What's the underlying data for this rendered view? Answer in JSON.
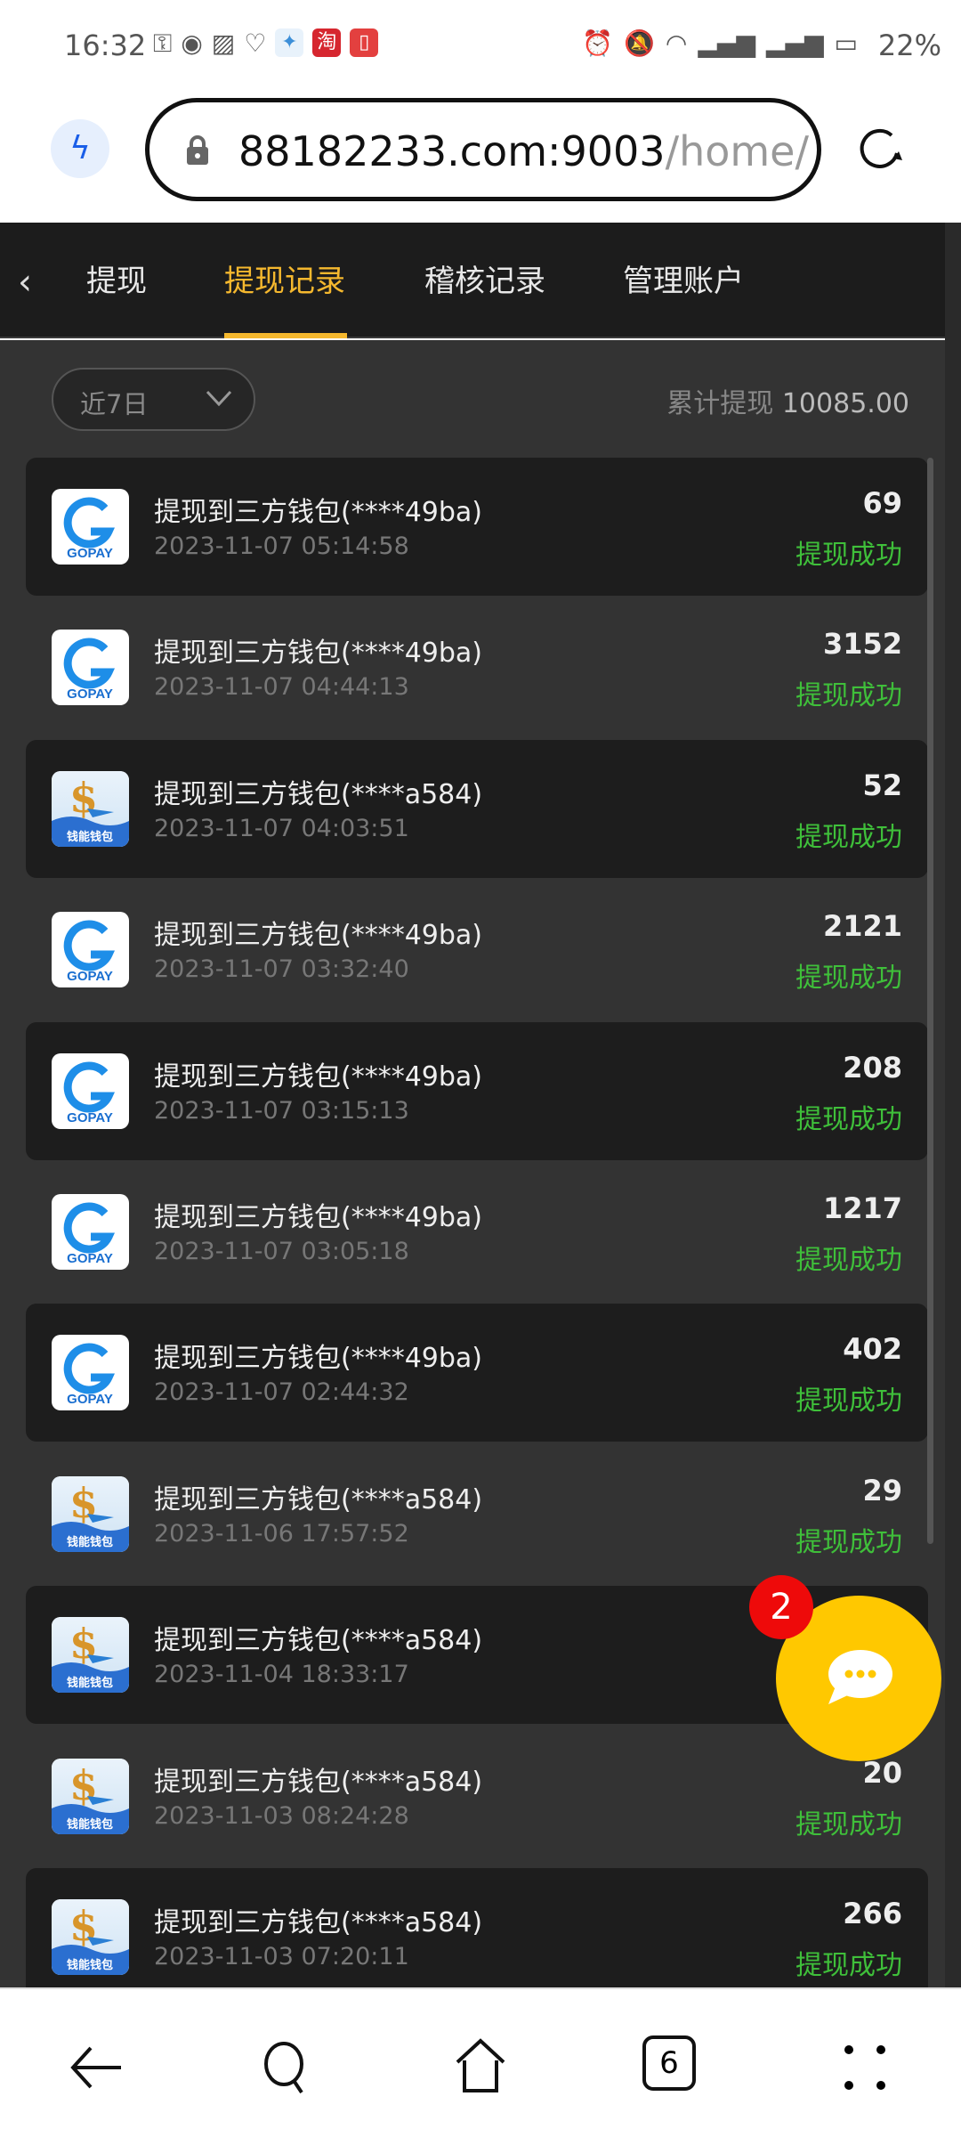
{
  "status_bar": {
    "time": "16:32",
    "battery": "22%",
    "icons": [
      "key-icon",
      "eye-icon",
      "app-icon",
      "app-icon",
      "bird-app-icon",
      "taobao-icon",
      "book-app-icon",
      "alarm-icon",
      "mute-icon",
      "wifi-icon",
      "4g-signal-icon",
      "5g-signal-icon",
      "battery-icon"
    ],
    "taobao_label": "淘"
  },
  "browser": {
    "url_host": "88182233.com:9003",
    "url_path": "/home/",
    "tab_count": "6"
  },
  "tabs": [
    {
      "label": "提现"
    },
    {
      "label": "提现记录",
      "active": true
    },
    {
      "label": "稽核记录"
    },
    {
      "label": "管理账户"
    }
  ],
  "colors": {
    "accent": "#f5b82e",
    "success": "#3fbf3a",
    "fab": "#ffc800",
    "badge": "#ee0a0a"
  },
  "filter": {
    "selected": "近7日"
  },
  "summary": {
    "label": "累计提现",
    "value": "10085.00"
  },
  "records": [
    {
      "wallet": "gopay",
      "title": "提现到三方钱包(****49ba)",
      "date": "2023-11-07 05:14:58",
      "amount": "69",
      "status": "提现成功"
    },
    {
      "wallet": "gopay",
      "title": "提现到三方钱包(****49ba)",
      "date": "2023-11-07 04:44:13",
      "amount": "3152",
      "status": "提现成功"
    },
    {
      "wallet": "qianneng",
      "title": "提现到三方钱包(****a584)",
      "date": "2023-11-07 04:03:51",
      "amount": "52",
      "status": "提现成功"
    },
    {
      "wallet": "gopay",
      "title": "提现到三方钱包(****49ba)",
      "date": "2023-11-07 03:32:40",
      "amount": "2121",
      "status": "提现成功"
    },
    {
      "wallet": "gopay",
      "title": "提现到三方钱包(****49ba)",
      "date": "2023-11-07 03:15:13",
      "amount": "208",
      "status": "提现成功"
    },
    {
      "wallet": "gopay",
      "title": "提现到三方钱包(****49ba)",
      "date": "2023-11-07 03:05:18",
      "amount": "1217",
      "status": "提现成功"
    },
    {
      "wallet": "gopay",
      "title": "提现到三方钱包(****49ba)",
      "date": "2023-11-07 02:44:32",
      "amount": "402",
      "status": "提现成功"
    },
    {
      "wallet": "qianneng",
      "title": "提现到三方钱包(****a584)",
      "date": "2023-11-06 17:57:52",
      "amount": "29",
      "status": "提现成功"
    },
    {
      "wallet": "qianneng",
      "title": "提现到三方钱包(****a584)",
      "date": "2023-11-04 18:33:17"
    },
    {
      "wallet": "qianneng",
      "title": "提现到三方钱包(****a584)",
      "date": "2023-11-03 08:24:28",
      "amount": "20",
      "status": "提现成功"
    },
    {
      "wallet": "qianneng",
      "title": "提现到三方钱包(****a584)",
      "date": "2023-11-03 07:20:11",
      "amount": "266",
      "status": "提现成功"
    }
  ],
  "wallet_logos": {
    "gopay": "GOPAY",
    "qianneng": "钱能钱包"
  },
  "chat": {
    "badge": "2"
  }
}
